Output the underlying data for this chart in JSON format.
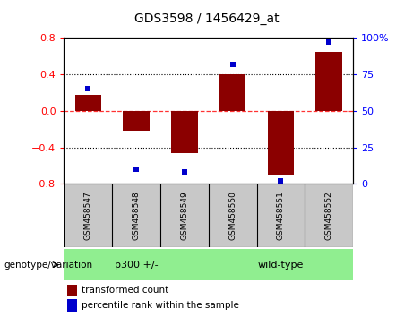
{
  "title": "GDS3598 / 1456429_at",
  "categories": [
    "GSM458547",
    "GSM458548",
    "GSM458549",
    "GSM458550",
    "GSM458551",
    "GSM458552"
  ],
  "bar_values": [
    0.18,
    -0.22,
    -0.46,
    0.4,
    -0.7,
    0.65
  ],
  "percentile_values": [
    65,
    10,
    8,
    82,
    2,
    97
  ],
  "bar_color": "#8B0000",
  "dot_color": "#0000CC",
  "ylim_left": [
    -0.8,
    0.8
  ],
  "ylim_right": [
    0,
    100
  ],
  "yticks_left": [
    -0.8,
    -0.4,
    0,
    0.4,
    0.8
  ],
  "yticks_right": [
    0,
    25,
    50,
    75,
    100
  ],
  "group1_label": "p300 +/-",
  "group2_label": "wild-type",
  "group_color": "#90EE90",
  "sample_box_color": "#C8C8C8",
  "group_label": "genotype/variation",
  "legend_bar_label": "transformed count",
  "legend_dot_label": "percentile rank within the sample",
  "hline_color": "#FF3333",
  "grid_color": "#000000",
  "bar_width": 0.55,
  "title_fontsize": 10,
  "tick_fontsize": 8,
  "label_fontsize": 8
}
